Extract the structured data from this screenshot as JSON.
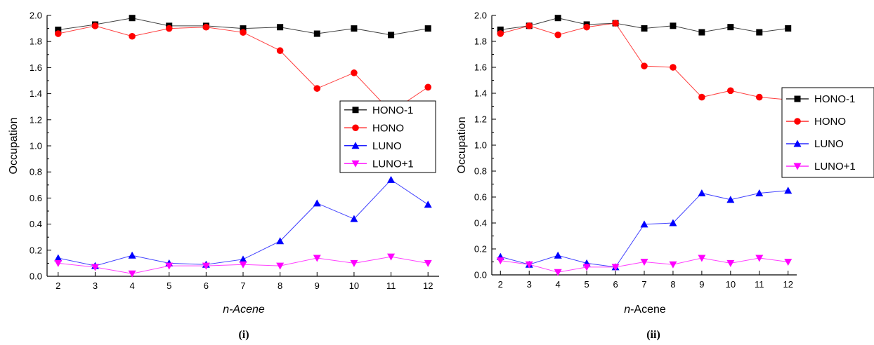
{
  "chart_data": [
    {
      "type": "line",
      "panel_label": "(i)",
      "xlabel": "n-Acene",
      "xlabel_prefix": "n",
      "xlabel_suffix": "-Acene",
      "xlabel_style": "italic",
      "ylabel": "Occupation",
      "x": [
        2,
        3,
        4,
        5,
        6,
        7,
        8,
        9,
        10,
        11,
        12
      ],
      "xlim": [
        1.7,
        12.3
      ],
      "ylim": [
        0.0,
        2.0
      ],
      "yticks": [
        "0.0",
        "0.2",
        "0.4",
        "0.6",
        "0.8",
        "1.0",
        "1.2",
        "1.4",
        "1.6",
        "1.8",
        "2.0"
      ],
      "xticks": [
        "2",
        "3",
        "4",
        "5",
        "6",
        "7",
        "8",
        "9",
        "10",
        "11",
        "12"
      ],
      "legend_position": "right",
      "grid": false,
      "series": [
        {
          "name": "HONO-1",
          "color": "#000000",
          "marker": "square",
          "values": [
            1.89,
            1.93,
            1.98,
            1.92,
            1.92,
            1.9,
            1.91,
            1.86,
            1.9,
            1.85,
            1.9
          ]
        },
        {
          "name": "HONO",
          "color": "#ff0000",
          "marker": "circle",
          "values": [
            1.86,
            1.92,
            1.84,
            1.9,
            1.91,
            1.87,
            1.73,
            1.44,
            1.56,
            1.26,
            1.45
          ]
        },
        {
          "name": "LUNO",
          "color": "#0000ff",
          "marker": "triangle-up",
          "values": [
            0.14,
            0.08,
            0.16,
            0.1,
            0.09,
            0.13,
            0.27,
            0.56,
            0.44,
            0.74,
            0.55
          ]
        },
        {
          "name": "LUNO+1",
          "color": "#ff00ff",
          "marker": "triangle-down",
          "values": [
            0.1,
            0.07,
            0.02,
            0.08,
            0.08,
            0.09,
            0.08,
            0.14,
            0.1,
            0.15,
            0.1
          ]
        }
      ]
    },
    {
      "type": "line",
      "panel_label": "(ii)",
      "xlabel": "n-Acene",
      "xlabel_prefix": "n",
      "xlabel_suffix": "-Acene",
      "xlabel_style": "italic-n-only",
      "ylabel": "Occupation",
      "x": [
        2,
        3,
        4,
        5,
        6,
        7,
        8,
        9,
        10,
        11,
        12
      ],
      "xlim": [
        1.7,
        12.3
      ],
      "ylim": [
        0.0,
        2.0
      ],
      "yticks": [
        "0.0",
        "0.2",
        "0.4",
        "0.6",
        "0.8",
        "1.0",
        "1.2",
        "1.4",
        "1.6",
        "1.8",
        "2.0"
      ],
      "xticks": [
        "2",
        "3",
        "4",
        "5",
        "6",
        "7",
        "8",
        "9",
        "10",
        "11",
        "12"
      ],
      "legend_position": "right",
      "grid": false,
      "series": [
        {
          "name": "HONO-1",
          "color": "#000000",
          "marker": "square",
          "values": [
            1.89,
            1.92,
            1.98,
            1.93,
            1.94,
            1.9,
            1.92,
            1.87,
            1.91,
            1.87,
            1.9
          ]
        },
        {
          "name": "HONO",
          "color": "#ff0000",
          "marker": "circle",
          "values": [
            1.86,
            1.92,
            1.85,
            1.91,
            1.94,
            1.61,
            1.6,
            1.37,
            1.42,
            1.37,
            1.35
          ]
        },
        {
          "name": "LUNO",
          "color": "#0000ff",
          "marker": "triangle-up",
          "values": [
            0.14,
            0.08,
            0.15,
            0.09,
            0.06,
            0.39,
            0.4,
            0.63,
            0.58,
            0.63,
            0.65
          ]
        },
        {
          "name": "LUNO+1",
          "color": "#ff00ff",
          "marker": "triangle-down",
          "values": [
            0.11,
            0.08,
            0.02,
            0.06,
            0.06,
            0.1,
            0.08,
            0.13,
            0.09,
            0.13,
            0.1
          ]
        }
      ]
    }
  ]
}
